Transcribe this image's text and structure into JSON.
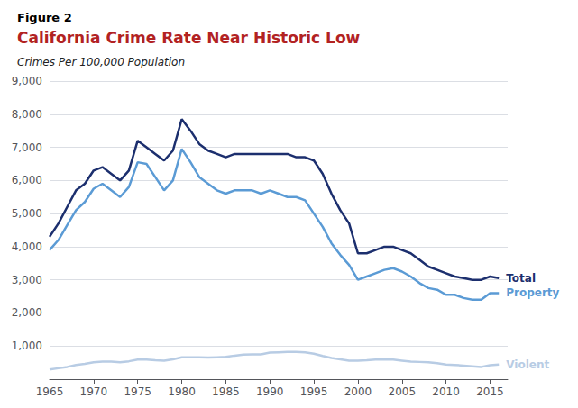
{
  "chart_data": {
    "type": "line",
    "title": "California Crime Rate Near Historic Low",
    "subtitle": "Crimes Per 100,000 Population",
    "annotations": [
      "Figure 2"
    ],
    "x": [
      1965,
      1966,
      1967,
      1968,
      1969,
      1970,
      1971,
      1972,
      1973,
      1974,
      1975,
      1976,
      1977,
      1978,
      1979,
      1980,
      1981,
      1982,
      1983,
      1984,
      1985,
      1986,
      1987,
      1988,
      1989,
      1990,
      1991,
      1992,
      1993,
      1994,
      1995,
      1996,
      1997,
      1998,
      1999,
      2000,
      2001,
      2002,
      2003,
      2004,
      2005,
      2006,
      2007,
      2008,
      2009,
      2010,
      2011,
      2012,
      2013,
      2014,
      2015,
      2016
    ],
    "series": [
      {
        "name": "Total",
        "color": "#1c2f6e",
        "values": [
          4300,
          4700,
          5200,
          5700,
          5900,
          6300,
          6400,
          6200,
          6000,
          6300,
          7200,
          7000,
          6800,
          6600,
          6900,
          7850,
          7500,
          7100,
          6900,
          6800,
          6700,
          6800,
          6800,
          6800,
          6800,
          6800,
          6800,
          6800,
          6700,
          6700,
          6600,
          6200,
          5600,
          5100,
          4700,
          3800,
          3800,
          3900,
          4000,
          4000,
          3900,
          3800,
          3600,
          3400,
          3300,
          3200,
          3100,
          3050,
          3000,
          3000,
          3100,
          3050
        ]
      },
      {
        "name": "Property",
        "color": "#5b9bd5",
        "values": [
          3900,
          4200,
          4650,
          5100,
          5350,
          5750,
          5900,
          5700,
          5500,
          5800,
          6550,
          6500,
          6100,
          5700,
          6000,
          6950,
          6550,
          6100,
          5900,
          5700,
          5600,
          5700,
          5700,
          5700,
          5600,
          5700,
          5600,
          5500,
          5500,
          5400,
          5000,
          4600,
          4100,
          3750,
          3450,
          3000,
          3100,
          3200,
          3300,
          3350,
          3250,
          3100,
          2900,
          2750,
          2700,
          2550,
          2550,
          2450,
          2400,
          2400,
          2600,
          2600
        ]
      },
      {
        "name": "Violent",
        "color": "#b8cce4",
        "values": [
          290,
          330,
          370,
          430,
          460,
          510,
          530,
          530,
          510,
          540,
          590,
          590,
          570,
          560,
          600,
          660,
          660,
          660,
          650,
          660,
          670,
          710,
          740,
          750,
          750,
          800,
          810,
          820,
          820,
          810,
          770,
          700,
          640,
          600,
          560,
          560,
          570,
          590,
          600,
          590,
          560,
          530,
          520,
          510,
          480,
          440,
          430,
          410,
          390,
          370,
          420,
          440
        ]
      }
    ],
    "xlim": [
      1965,
      2017
    ],
    "xticks": [
      1965,
      1970,
      1975,
      1980,
      1985,
      1990,
      1995,
      2000,
      2005,
      2010,
      2015
    ],
    "ylim": [
      0,
      9000
    ],
    "yticks": [
      {
        "value": 1000,
        "label": "1,000"
      },
      {
        "value": 2000,
        "label": "2,000"
      },
      {
        "value": 3000,
        "label": "3,000"
      },
      {
        "value": 4000,
        "label": "4,000"
      },
      {
        "value": 5000,
        "label": "5,000"
      },
      {
        "value": 6000,
        "label": "6,000"
      },
      {
        "value": 7000,
        "label": "7,000"
      },
      {
        "value": 8000,
        "label": "8,000"
      },
      {
        "value": 9000,
        "label": "9,000"
      }
    ],
    "grid": true
  }
}
